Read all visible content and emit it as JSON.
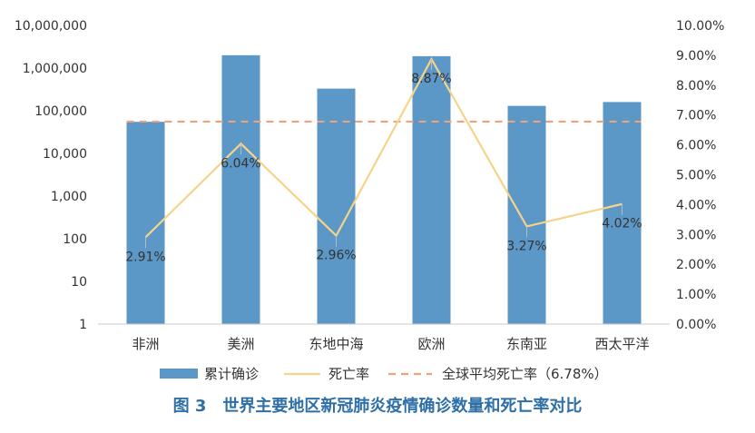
{
  "caption": "图 3　世界主要地区新冠肺炎疫情确诊数量和死亡率对比",
  "colors": {
    "bar": "#5b97c7",
    "line": "#f5d489",
    "avg_line": "#f0a27a",
    "caption": "#2f6fa7",
    "text": "#333333"
  },
  "chart_data": {
    "type": "bar",
    "categories": [
      "非洲",
      "美洲",
      "东地中海",
      "欧洲",
      "东南亚",
      "西太平洋"
    ],
    "series": [
      {
        "name": "累计确诊",
        "type": "bar",
        "axis": "left",
        "scale": "log",
        "values": [
          55000,
          2000000,
          330000,
          1900000,
          130000,
          160000
        ]
      },
      {
        "name": "死亡率",
        "type": "line",
        "axis": "right",
        "values": [
          2.91,
          6.04,
          2.96,
          8.87,
          3.27,
          4.02
        ],
        "labels": [
          "2.91%",
          "6.04%",
          "2.96%",
          "8.87%",
          "3.27%",
          "4.02%"
        ]
      },
      {
        "name": "全球平均死亡率（6.78%）",
        "type": "dashed-line",
        "axis": "right",
        "value": 6.78
      }
    ],
    "y_left": {
      "scale": "log",
      "ylim": [
        1,
        10000000
      ],
      "ticks": [
        1,
        10,
        100,
        1000,
        10000,
        100000,
        1000000,
        10000000
      ],
      "tick_labels": [
        "1",
        "10",
        "100",
        "1,000",
        "10,000",
        "100,000",
        "1,000,000",
        "10,000,000"
      ]
    },
    "y_right": {
      "ylim": [
        0,
        10
      ],
      "ticks": [
        0,
        1,
        2,
        3,
        4,
        5,
        6,
        7,
        8,
        9,
        10
      ],
      "tick_labels": [
        "0.00%",
        "1.00%",
        "2.00%",
        "3.00%",
        "4.00%",
        "5.00%",
        "6.00%",
        "7.00%",
        "8.00%",
        "9.00%",
        "10.00%"
      ]
    },
    "legend": [
      "累计确诊",
      "死亡率",
      "全球平均死亡率（6.78%）"
    ],
    "legend_position": "bottom",
    "grid": false
  }
}
